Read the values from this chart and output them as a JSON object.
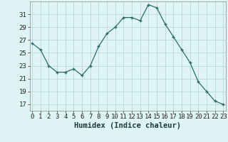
{
  "x": [
    0,
    1,
    2,
    3,
    4,
    5,
    6,
    7,
    8,
    9,
    10,
    11,
    12,
    13,
    14,
    15,
    16,
    17,
    18,
    19,
    20,
    21,
    22,
    23
  ],
  "y": [
    26.5,
    25.5,
    23.0,
    22.0,
    22.0,
    22.5,
    21.5,
    23.0,
    26.0,
    28.0,
    29.0,
    30.5,
    30.5,
    30.0,
    32.5,
    32.0,
    29.5,
    27.5,
    25.5,
    23.5,
    20.5,
    19.0,
    17.5,
    17.0
  ],
  "xlabel": "Humidex (Indice chaleur)",
  "yticks": [
    17,
    19,
    21,
    23,
    25,
    27,
    29,
    31
  ],
  "xticks": [
    0,
    1,
    2,
    3,
    4,
    5,
    6,
    7,
    8,
    9,
    10,
    11,
    12,
    13,
    14,
    15,
    16,
    17,
    18,
    19,
    20,
    21,
    22,
    23
  ],
  "ylim": [
    16.0,
    33.0
  ],
  "xlim": [
    -0.3,
    23.3
  ],
  "line_color": "#2d6b6b",
  "marker_color": "#2d6b6b",
  "bg_color": "#dff4f4",
  "grid_color": "#b8d8d8",
  "xlabel_fontsize": 7.5,
  "tick_fontsize": 6.5
}
